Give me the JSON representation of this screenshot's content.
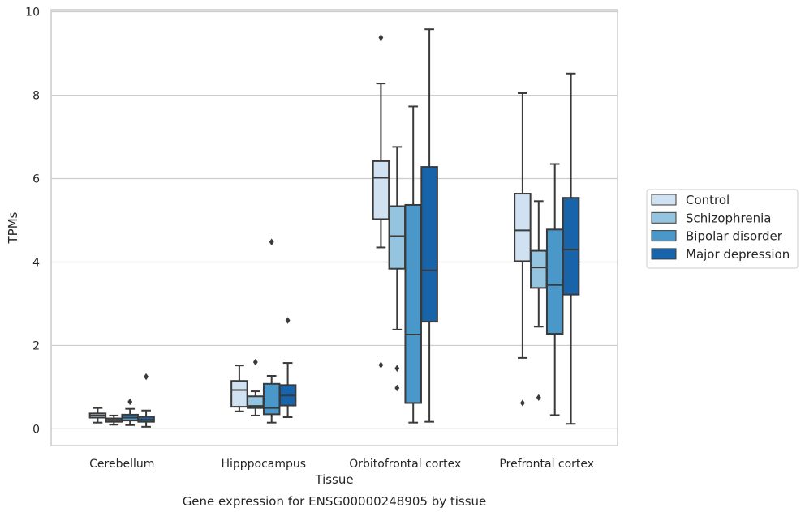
{
  "chart_data": {
    "type": "boxplot",
    "title": "",
    "caption": "Gene expression for ENSG00000248905 by tissue",
    "xlabel": "Tissue",
    "ylabel": "TPMs",
    "ylim": [
      -0.4,
      10.05
    ],
    "yticks": [
      0,
      2,
      4,
      6,
      8,
      10
    ],
    "grid": "horizontal",
    "legend_position": "right",
    "categories": [
      "Cerebellum",
      "Hipppocampus",
      "Orbitofrontal cortex",
      "Prefrontal cortex"
    ],
    "series": [
      {
        "name": "Control",
        "color": "#d0e1f2",
        "boxes": [
          {
            "whislo": 0.15,
            "q1": 0.27,
            "med": 0.32,
            "q3": 0.37,
            "whishi": 0.5,
            "fliers": []
          },
          {
            "whislo": 0.42,
            "q1": 0.53,
            "med": 0.93,
            "q3": 1.15,
            "whishi": 1.52,
            "fliers": []
          },
          {
            "whislo": 4.35,
            "q1": 5.03,
            "med": 6.02,
            "q3": 6.42,
            "whishi": 8.28,
            "fliers": [
              9.38,
              1.53
            ]
          },
          {
            "whislo": 1.7,
            "q1": 4.02,
            "med": 4.76,
            "q3": 5.64,
            "whishi": 8.05,
            "fliers": [
              0.62
            ]
          }
        ]
      },
      {
        "name": "Schizophrenia",
        "color": "#94c4df",
        "boxes": [
          {
            "whislo": 0.1,
            "q1": 0.17,
            "med": 0.21,
            "q3": 0.25,
            "whishi": 0.32,
            "fliers": []
          },
          {
            "whislo": 0.32,
            "q1": 0.5,
            "med": 0.55,
            "q3": 0.78,
            "whishi": 0.9,
            "fliers": [
              1.6
            ]
          },
          {
            "whislo": 2.38,
            "q1": 3.84,
            "med": 4.62,
            "q3": 5.34,
            "whishi": 6.76,
            "fliers": [
              1.45,
              0.98
            ]
          },
          {
            "whislo": 2.45,
            "q1": 3.38,
            "med": 3.87,
            "q3": 4.27,
            "whishi": 5.46,
            "fliers": [
              0.75
            ]
          }
        ]
      },
      {
        "name": "Bipolar disorder",
        "color": "#4a98c9",
        "boxes": [
          {
            "whislo": 0.09,
            "q1": 0.2,
            "med": 0.27,
            "q3": 0.34,
            "whishi": 0.48,
            "fliers": [
              0.65
            ]
          },
          {
            "whislo": 0.15,
            "q1": 0.35,
            "med": 0.5,
            "q3": 1.08,
            "whishi": 1.27,
            "fliers": [
              4.48
            ]
          },
          {
            "whislo": 0.15,
            "q1": 0.62,
            "med": 2.26,
            "q3": 5.37,
            "whishi": 7.73,
            "fliers": []
          },
          {
            "whislo": 0.33,
            "q1": 2.28,
            "med": 3.45,
            "q3": 4.78,
            "whishi": 6.35,
            "fliers": []
          }
        ]
      },
      {
        "name": "Major depression",
        "color": "#1764ab",
        "boxes": [
          {
            "whislo": 0.05,
            "q1": 0.17,
            "med": 0.22,
            "q3": 0.29,
            "whishi": 0.44,
            "fliers": [
              1.25
            ]
          },
          {
            "whislo": 0.28,
            "q1": 0.56,
            "med": 0.8,
            "q3": 1.05,
            "whishi": 1.58,
            "fliers": [
              2.6
            ]
          },
          {
            "whislo": 0.17,
            "q1": 2.57,
            "med": 3.8,
            "q3": 6.28,
            "whishi": 9.58,
            "fliers": []
          },
          {
            "whislo": 0.12,
            "q1": 3.22,
            "med": 4.3,
            "q3": 5.54,
            "whishi": 8.52,
            "fliers": []
          }
        ]
      }
    ]
  }
}
